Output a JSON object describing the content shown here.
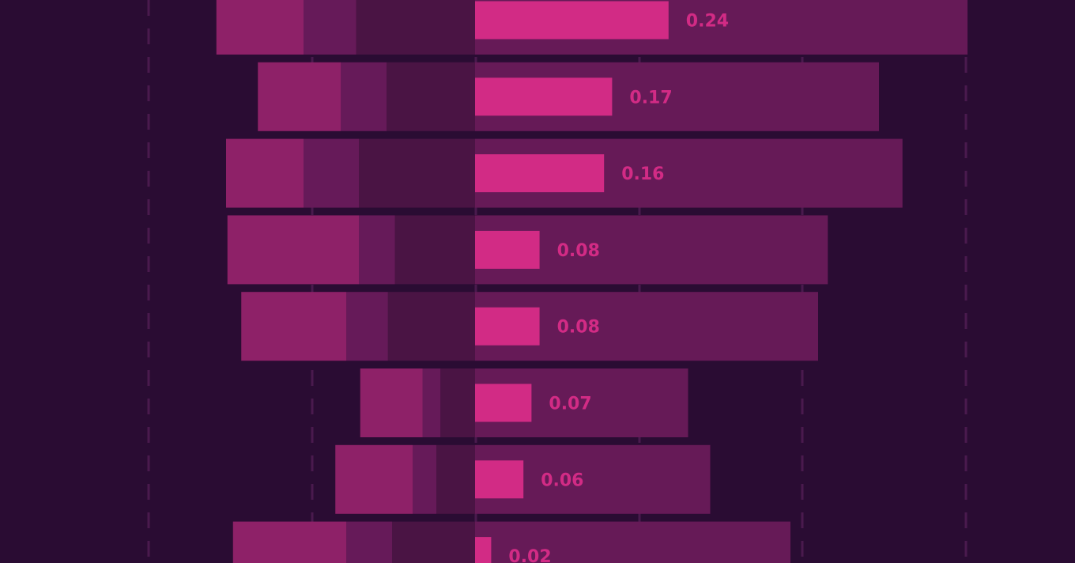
{
  "chart_data": {
    "type": "bar",
    "orientation": "horizontal",
    "grid": "dashed vertical lines",
    "rows": [
      {
        "label": "0.24",
        "value": 0.24,
        "left_segments": [
          0.63,
          0.38,
          0.86
        ],
        "right_total": 3.56
      },
      {
        "label": "0.17",
        "value": 0.17,
        "left_segments": [
          0.6,
          0.33,
          0.64
        ],
        "right_total": 2.92
      },
      {
        "label": "0.16",
        "value": 0.16,
        "left_segments": [
          0.56,
          0.4,
          0.84
        ],
        "right_total": 3.09
      },
      {
        "label": "0.08",
        "value": 0.08,
        "left_segments": [
          0.95,
          0.26,
          0.58
        ],
        "right_total": 2.55
      },
      {
        "label": "0.08",
        "value": 0.08,
        "left_segments": [
          0.76,
          0.3,
          0.63
        ],
        "right_total": 2.48
      },
      {
        "label": "0.07",
        "value": 0.07,
        "left_segments": [
          0.45,
          0.13,
          0.25
        ],
        "right_total": 1.54
      },
      {
        "label": "0.06",
        "value": 0.06,
        "left_segments": [
          0.56,
          0.17,
          0.28
        ],
        "right_total": 1.7
      },
      {
        "label": "0.02",
        "value": 0.02,
        "left_segments": [
          0.82,
          0.33,
          0.6
        ],
        "right_total": 2.28
      }
    ]
  },
  "colors": {
    "background": "#2a0c33",
    "gridline": "#4a1a4e",
    "left_inner": "#4a1444",
    "left_middle": "#661a59",
    "left_outer": "#8e2168",
    "right_total": "#661a57",
    "value_bar": "#d22b85",
    "value_label": "#d22b85"
  }
}
